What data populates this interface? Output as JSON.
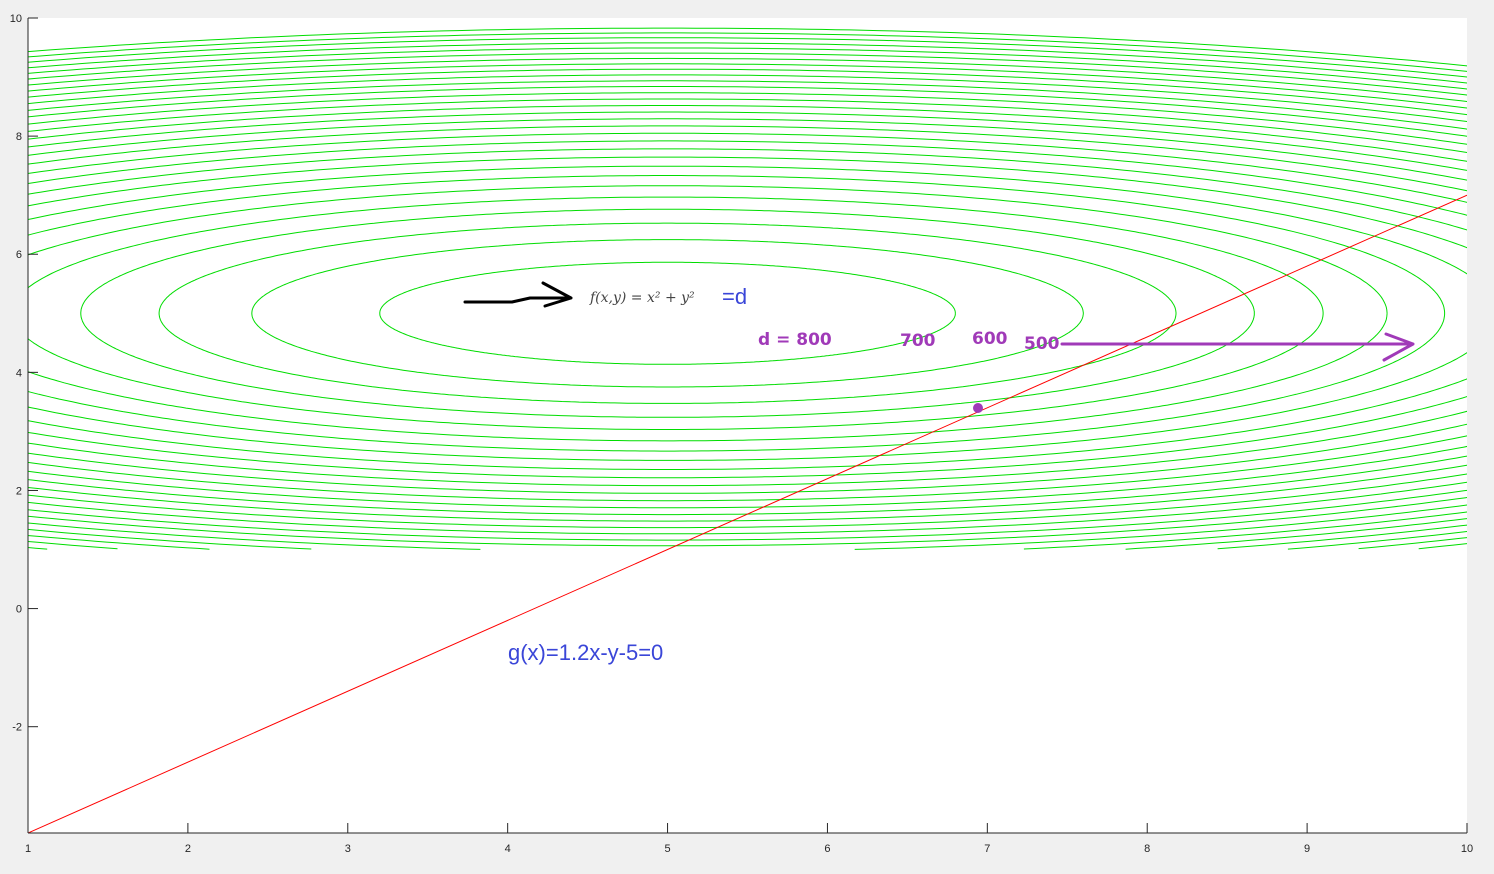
{
  "chart_data": {
    "type": "contour",
    "xlim": [
      1,
      10
    ],
    "ylim": [
      -3.8,
      10
    ],
    "x_ticks": [
      "1",
      "2",
      "3",
      "4",
      "5",
      "6",
      "7",
      "8",
      "9",
      "10"
    ],
    "y_ticks": [
      "-2",
      "0",
      "2",
      "4",
      "6",
      "8",
      "10"
    ],
    "contours": {
      "color": "#00dd00",
      "center": [
        5,
        5
      ],
      "y_range": [
        1,
        10
      ],
      "semi_axis_x": [
        1.8,
        2.6,
        3.18,
        3.67,
        4.1,
        4.5,
        4.86,
        5.19,
        5.51,
        5.8,
        6.08,
        6.35,
        6.61,
        6.86,
        7.1,
        7.33,
        7.56,
        7.78,
        8.0,
        8.2,
        8.41,
        8.61,
        8.8,
        8.99,
        9.18,
        9.36,
        9.54,
        9.72,
        9.89,
        10.06
      ],
      "aspect_y_over_x": 0.48
    },
    "constraint_line": {
      "color": "#ff0000",
      "slope": 1.2,
      "intercept": -5,
      "x_range": [
        1,
        10
      ]
    }
  },
  "annotations": {
    "f_formula": "f(x,y) = x² + y²",
    "equals_d": "=d",
    "g_label": "g(x)=1.2x-y-5=0",
    "d_label": "d = 800",
    "level_700": "700",
    "level_600": "600",
    "level_500": "500",
    "colors": {
      "blue": "#3a46d8",
      "purple": "#a03ab8",
      "black": "#000000"
    }
  }
}
